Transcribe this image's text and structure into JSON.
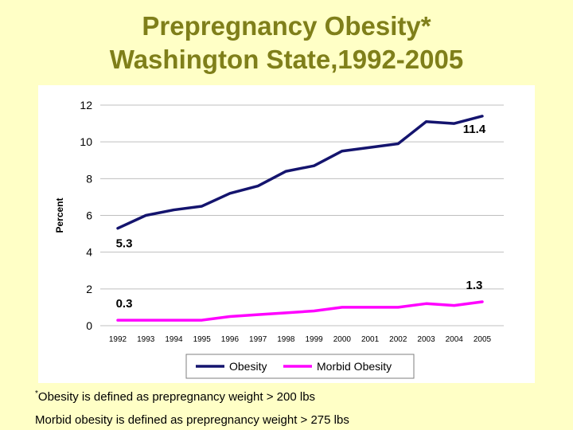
{
  "title_line1": "Prepregnancy Obesity*",
  "title_line2": "Washington State,1992-2005",
  "footnotes": {
    "star": "*",
    "line1": "Obesity is defined as prepregnancy weight > 200 lbs",
    "line2": "Morbid obesity is defined as prepregnancy weight > 275 lbs"
  },
  "chart_data": {
    "type": "line",
    "title": "",
    "ylabel": "Percent",
    "xlabel": "",
    "ylim": [
      0,
      12
    ],
    "yticks": [
      0,
      2,
      4,
      6,
      8,
      10,
      12
    ],
    "grid": true,
    "legend_position": "bottom",
    "categories": [
      "1992",
      "1993",
      "1994",
      "1995",
      "1996",
      "1997",
      "1998",
      "1999",
      "2000",
      "2001",
      "2002",
      "2003",
      "2004",
      "2005"
    ],
    "series": [
      {
        "name": "Obesity",
        "color": "#14146e",
        "values": [
          5.3,
          6.0,
          6.3,
          6.5,
          7.2,
          7.6,
          8.4,
          8.7,
          9.5,
          9.7,
          9.9,
          11.1,
          11.0,
          11.4
        ],
        "annotations": [
          {
            "index": 0,
            "text": "5.3"
          },
          {
            "index": 13,
            "text": "11.4"
          }
        ]
      },
      {
        "name": "Morbid Obesity",
        "color": "#ff00ff",
        "values": [
          0.3,
          0.3,
          0.3,
          0.3,
          0.5,
          0.6,
          0.7,
          0.8,
          1.0,
          1.0,
          1.0,
          1.2,
          1.1,
          1.3
        ],
        "annotations": [
          {
            "index": 0,
            "text": "0.3"
          },
          {
            "index": 13,
            "text": "1.3"
          }
        ]
      }
    ]
  }
}
